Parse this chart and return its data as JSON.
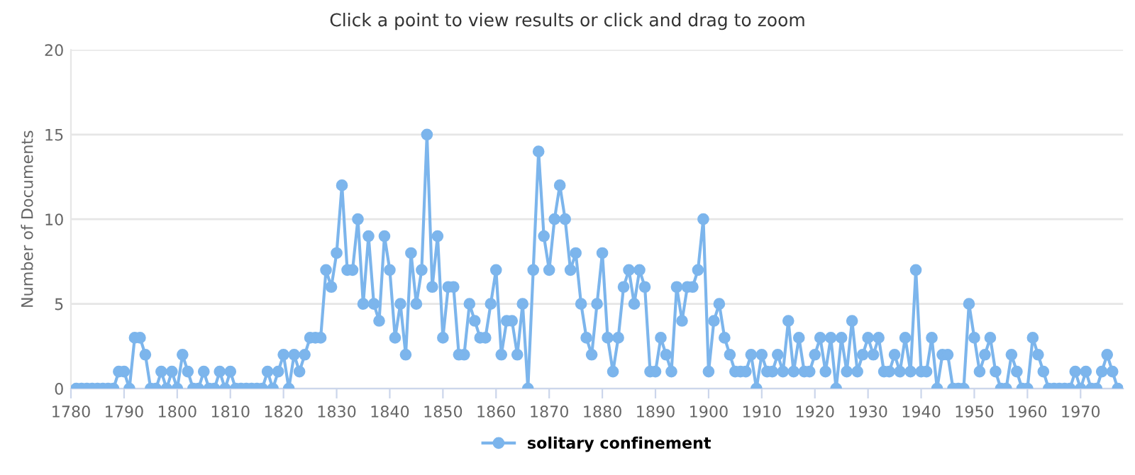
{
  "chart_data": {
    "type": "line",
    "title": "Click a point to view results or click and drag to zoom",
    "ylabel": "Number of Documents",
    "x": [
      1781,
      1782,
      1783,
      1784,
      1785,
      1786,
      1787,
      1788,
      1789,
      1790,
      1791,
      1792,
      1793,
      1794,
      1795,
      1796,
      1797,
      1798,
      1799,
      1800,
      1801,
      1802,
      1803,
      1804,
      1805,
      1806,
      1807,
      1808,
      1809,
      1810,
      1811,
      1812,
      1813,
      1814,
      1815,
      1816,
      1817,
      1818,
      1819,
      1820,
      1821,
      1822,
      1823,
      1824,
      1825,
      1826,
      1827,
      1828,
      1829,
      1830,
      1831,
      1832,
      1833,
      1834,
      1835,
      1836,
      1837,
      1838,
      1839,
      1840,
      1841,
      1842,
      1843,
      1844,
      1845,
      1846,
      1847,
      1848,
      1849,
      1850,
      1851,
      1852,
      1853,
      1854,
      1855,
      1856,
      1857,
      1858,
      1859,
      1860,
      1861,
      1862,
      1863,
      1864,
      1865,
      1866,
      1867,
      1868,
      1869,
      1870,
      1871,
      1872,
      1873,
      1874,
      1875,
      1876,
      1877,
      1878,
      1879,
      1880,
      1881,
      1882,
      1883,
      1884,
      1885,
      1886,
      1887,
      1888,
      1889,
      1890,
      1891,
      1892,
      1893,
      1894,
      1895,
      1896,
      1897,
      1898,
      1899,
      1900,
      1901,
      1902,
      1903,
      1904,
      1905,
      1906,
      1907,
      1908,
      1909,
      1910,
      1911,
      1912,
      1913,
      1914,
      1915,
      1916,
      1917,
      1918,
      1919,
      1920,
      1921,
      1922,
      1923,
      1924,
      1925,
      1926,
      1927,
      1928,
      1929,
      1930,
      1931,
      1932,
      1933,
      1934,
      1935,
      1936,
      1937,
      1938,
      1939,
      1940,
      1941,
      1942,
      1943,
      1944,
      1945,
      1946,
      1947,
      1948,
      1949,
      1950,
      1951,
      1952,
      1953,
      1954,
      1955,
      1956,
      1957,
      1958,
      1959,
      1960,
      1961,
      1962,
      1963,
      1964,
      1965,
      1966,
      1967,
      1968,
      1969,
      1970,
      1971,
      1972,
      1973,
      1974,
      1975,
      1976,
      1977
    ],
    "series": [
      {
        "name": "solitary confinement",
        "color": "#7cb5ec",
        "values": [
          0,
          0,
          0,
          0,
          0,
          0,
          0,
          0,
          1,
          1,
          0,
          3,
          3,
          2,
          0,
          0,
          1,
          0,
          1,
          0,
          2,
          1,
          0,
          0,
          1,
          0,
          0,
          1,
          0,
          1,
          0,
          0,
          0,
          0,
          0,
          0,
          1,
          0,
          1,
          2,
          0,
          2,
          1,
          2,
          3,
          3,
          3,
          7,
          6,
          8,
          12,
          7,
          7,
          10,
          5,
          9,
          5,
          4,
          9,
          7,
          3,
          5,
          2,
          8,
          5,
          7,
          15,
          6,
          9,
          3,
          6,
          6,
          2,
          2,
          5,
          4,
          3,
          3,
          5,
          7,
          2,
          4,
          4,
          2,
          5,
          0,
          7,
          14,
          9,
          7,
          10,
          12,
          10,
          7,
          8,
          5,
          3,
          2,
          5,
          8,
          3,
          1,
          3,
          6,
          7,
          5,
          7,
          6,
          1,
          1,
          3,
          2,
          1,
          6,
          4,
          6,
          6,
          7,
          10,
          1,
          4,
          5,
          3,
          2,
          1,
          1,
          1,
          2,
          0,
          2,
          1,
          1,
          2,
          1,
          4,
          1,
          3,
          1,
          1,
          2,
          3,
          1,
          3,
          0,
          3,
          1,
          4,
          1,
          2,
          3,
          2,
          3,
          1,
          1,
          2,
          1,
          3,
          1,
          7,
          1,
          1,
          3,
          0,
          2,
          2,
          0,
          0,
          0,
          5,
          3,
          1,
          2,
          3,
          1,
          0,
          0,
          2,
          1,
          0,
          0,
          3,
          2,
          1,
          0,
          0,
          0,
          0,
          0,
          1,
          0,
          1,
          0,
          0,
          1,
          2,
          1,
          0
        ]
      }
    ],
    "xlim": [
      1780,
      1978
    ],
    "xticks": [
      1780,
      1790,
      1800,
      1810,
      1820,
      1830,
      1840,
      1850,
      1860,
      1870,
      1880,
      1890,
      1900,
      1910,
      1920,
      1930,
      1940,
      1950,
      1960,
      1970
    ],
    "ylim": [
      0,
      20
    ],
    "yticks": [
      0,
      5,
      10,
      15,
      20
    ],
    "grid": "y",
    "legend": "bottom",
    "marker": "circle",
    "line_style": "solid"
  }
}
